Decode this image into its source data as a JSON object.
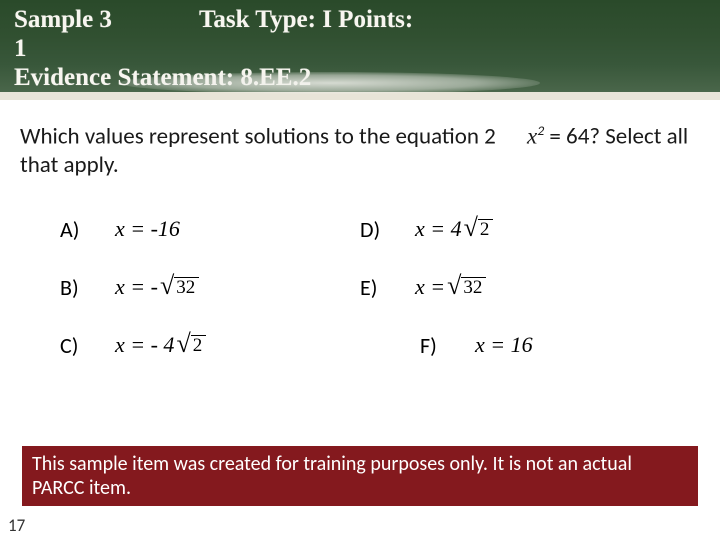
{
  "header": {
    "line1_left": "Sample 3",
    "line1_right": "Task Type: I  Points:",
    "line2": "1",
    "line3": "Evidence Statement: 8.EE.2"
  },
  "question": {
    "part1": "Which values represent solutions to the equation 2",
    "xvar": "x",
    "sup": "2",
    "part2": " = 64? Select all that apply."
  },
  "options": {
    "a": {
      "label": "A)",
      "prefix": "x = -16"
    },
    "b": {
      "label": "B)",
      "prefix": "x = -",
      "rad": "32"
    },
    "c": {
      "label": "C)",
      "prefix": "x = - 4",
      "rad": "2"
    },
    "d": {
      "label": "D)",
      "prefix": "x =  4",
      "rad": "2"
    },
    "e": {
      "label": "E)",
      "prefix": "x = ",
      "rad": "32"
    },
    "f": {
      "label": "F)",
      "prefix": "x = 16"
    }
  },
  "footer": "This sample item was created for training purposes only. It is not an actual PARCC item.",
  "slide_number": "17"
}
